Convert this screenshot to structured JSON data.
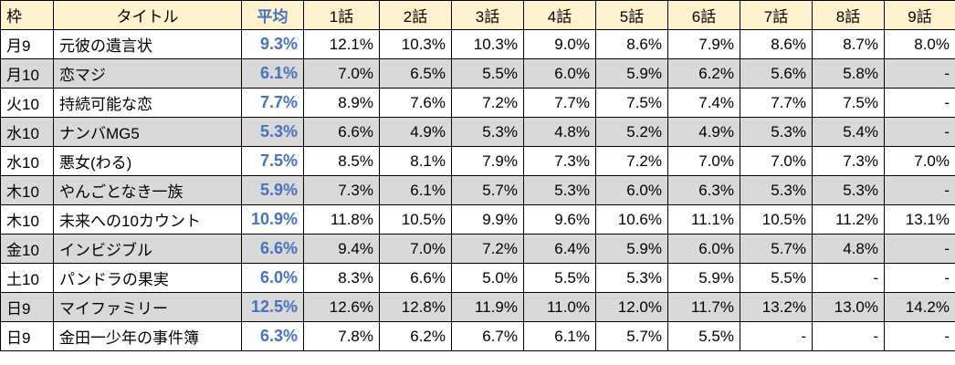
{
  "header": {
    "frame": "枠",
    "title": "タイトル",
    "average": "平均",
    "episodes": [
      "1話",
      "2話",
      "3話",
      "4話",
      "5話",
      "6話",
      "7話",
      "8話",
      "9話"
    ]
  },
  "colors": {
    "header_bg": "#fff2cc",
    "shaded_row_bg": "#d9d9d9",
    "average_text": "#4472c4",
    "border": "#000000"
  },
  "rows": [
    {
      "frame": "月9",
      "title": "元彼の遺言状",
      "average": "9.3%",
      "episodes": [
        "12.1%",
        "10.3%",
        "10.3%",
        "9.0%",
        "8.6%",
        "7.9%",
        "8.6%",
        "8.7%",
        "8.0%"
      ],
      "shaded": false
    },
    {
      "frame": "月10",
      "title": "恋マジ",
      "average": "6.1%",
      "episodes": [
        "7.0%",
        "6.5%",
        "5.5%",
        "6.0%",
        "5.9%",
        "6.2%",
        "5.6%",
        "5.8%",
        "-"
      ],
      "shaded": true
    },
    {
      "frame": "火10",
      "title": "持続可能な恋",
      "average": "7.7%",
      "episodes": [
        "8.9%",
        "7.6%",
        "7.2%",
        "7.7%",
        "7.5%",
        "7.4%",
        "7.7%",
        "7.5%",
        "-"
      ],
      "shaded": false
    },
    {
      "frame": "水10",
      "title": "ナンバMG5",
      "average": "5.3%",
      "episodes": [
        "6.6%",
        "4.9%",
        "5.3%",
        "4.8%",
        "5.2%",
        "4.9%",
        "5.3%",
        "5.4%",
        "-"
      ],
      "shaded": true
    },
    {
      "frame": "水10",
      "title": "悪女(わる)",
      "average": "7.5%",
      "episodes": [
        "8.5%",
        "8.1%",
        "7.9%",
        "7.3%",
        "7.2%",
        "7.0%",
        "7.0%",
        "7.3%",
        "7.0%"
      ],
      "shaded": false
    },
    {
      "frame": "木10",
      "title": "やんごとなき一族",
      "average": "5.9%",
      "episodes": [
        "7.3%",
        "6.1%",
        "5.7%",
        "5.3%",
        "6.0%",
        "6.3%",
        "5.3%",
        "5.3%",
        "-"
      ],
      "shaded": true
    },
    {
      "frame": "木10",
      "title": "未来への10カウント",
      "average": "10.9%",
      "episodes": [
        "11.8%",
        "10.5%",
        "9.9%",
        "9.6%",
        "10.6%",
        "11.1%",
        "10.5%",
        "11.2%",
        "13.1%"
      ],
      "shaded": false
    },
    {
      "frame": "金10",
      "title": "インビジブル",
      "average": "6.6%",
      "episodes": [
        "9.4%",
        "7.0%",
        "7.2%",
        "6.4%",
        "5.9%",
        "6.0%",
        "5.7%",
        "4.8%",
        "-"
      ],
      "shaded": true
    },
    {
      "frame": "土10",
      "title": "パンドラの果実",
      "average": "6.0%",
      "episodes": [
        "8.3%",
        "6.6%",
        "5.0%",
        "5.5%",
        "5.3%",
        "5.9%",
        "5.5%",
        "-",
        "-"
      ],
      "shaded": false
    },
    {
      "frame": "日9",
      "title": "マイファミリー",
      "average": "12.5%",
      "episodes": [
        "12.6%",
        "12.8%",
        "11.9%",
        "11.0%",
        "12.0%",
        "11.7%",
        "13.2%",
        "13.0%",
        "14.2%"
      ],
      "shaded": true
    },
    {
      "frame": "日9",
      "title": "金田一少年の事件簿",
      "average": "6.3%",
      "episodes": [
        "7.8%",
        "6.2%",
        "6.7%",
        "6.1%",
        "5.7%",
        "5.5%",
        "-",
        "-",
        "-"
      ],
      "shaded": false
    }
  ]
}
